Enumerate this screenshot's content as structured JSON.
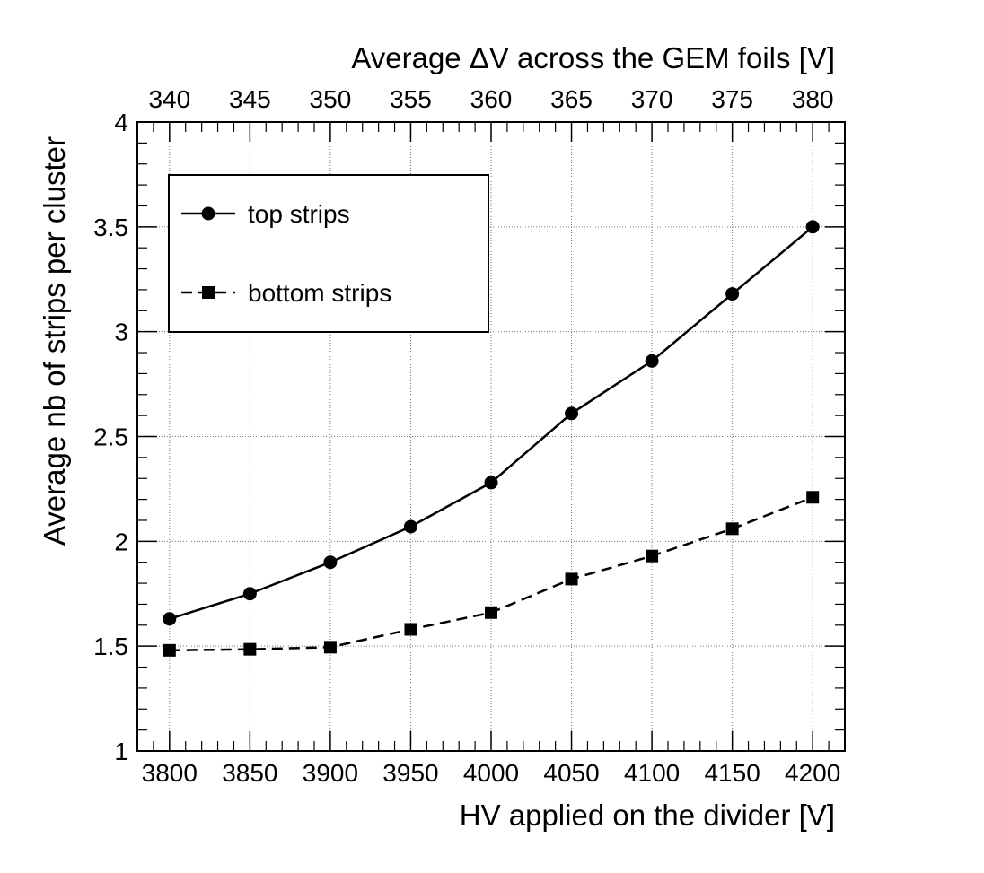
{
  "chart_data": {
    "type": "line",
    "title": "",
    "xlabel": "HV applied on the divider [V]",
    "x2label": "Average ΔV across the GEM foils [V]",
    "ylabel": "Average nb of strips per cluster",
    "xlim": [
      3780,
      4220
    ],
    "ylim": [
      1,
      4
    ],
    "x_ticks": [
      3800,
      3850,
      3900,
      3950,
      4000,
      4050,
      4100,
      4150,
      4200
    ],
    "x_tick_labels": [
      "3800",
      "3850",
      "3900",
      "3950",
      "4000",
      "4050",
      "4100",
      "4150",
      "4200"
    ],
    "x2_ticks": [
      340,
      345,
      350,
      355,
      360,
      365,
      370,
      375,
      380
    ],
    "x2_tick_labels": [
      "340",
      "345",
      "350",
      "355",
      "360",
      "365",
      "370",
      "375",
      "380"
    ],
    "y_ticks": [
      1,
      1.5,
      2,
      2.5,
      3,
      3.5,
      4
    ],
    "y_tick_labels": [
      "1",
      "1.5",
      "2",
      "2.5",
      "3",
      "3.5",
      "4"
    ],
    "grid": true,
    "legend_position": "top-left",
    "x": [
      3800,
      3850,
      3900,
      3950,
      4000,
      4050,
      4100,
      4150,
      4200
    ],
    "series": [
      {
        "name": "top strips",
        "marker": "circle",
        "line": "solid",
        "values": [
          1.63,
          1.75,
          1.9,
          2.07,
          2.28,
          2.61,
          2.86,
          3.18,
          3.5
        ]
      },
      {
        "name": "bottom strips",
        "marker": "square",
        "line": "dashed",
        "values": [
          1.48,
          1.485,
          1.495,
          1.58,
          1.66,
          1.82,
          1.93,
          2.06,
          2.21
        ]
      }
    ]
  }
}
